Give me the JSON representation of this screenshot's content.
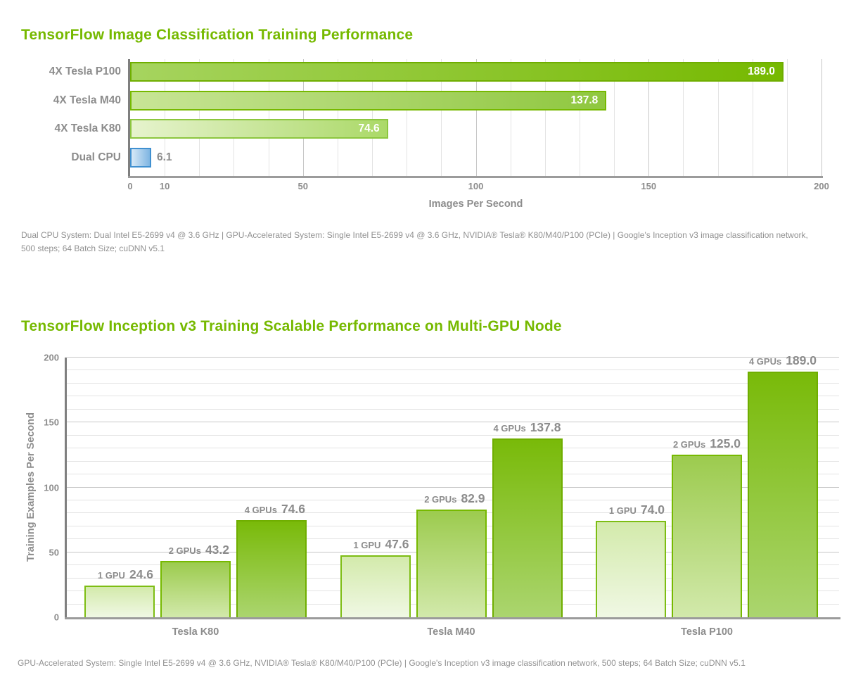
{
  "colors": {
    "brand_green": "#76b900",
    "label_gray": "#8c8c8c",
    "footnote_gray": "#919191",
    "axis_dark": "#7f7f7f",
    "axis_bottom": "#9b9b9b",
    "grid_minor": "#e3e3e3",
    "grid_major": "#c7c7c7",
    "cpu_blue": "#4090d0"
  },
  "chart_data": [
    {
      "type": "bar",
      "orientation": "horizontal",
      "title": "TensorFlow Image Classification Training Performance",
      "categories": [
        "4X Tesla P100",
        "4X Tesla M40",
        "4X Tesla K80",
        "Dual CPU"
      ],
      "values": [
        189.0,
        137.8,
        74.6,
        6.1
      ],
      "value_labels": [
        "189.0",
        "137.8",
        "74.6",
        "6.1"
      ],
      "value_inside": [
        true,
        true,
        true,
        false
      ],
      "xlabel": "Images Per Second",
      "xlim": [
        0,
        200
      ],
      "x_ticks": [
        0,
        10,
        50,
        100,
        150,
        200
      ],
      "grid": "vertical, minor every 10, major every 50",
      "legend": "none",
      "bar_styles": [
        {
          "border": "#6fae00",
          "from": "#a6d45f",
          "to": "#76b900"
        },
        {
          "border": "#76b900",
          "from": "#c8e596",
          "to": "#8fc73f"
        },
        {
          "border": "#8cc63f",
          "from": "#e6f3cd",
          "to": "#abd968"
        },
        {
          "border": "#4090d0",
          "from": "#d7e9f7",
          "to": "#7fb5e2"
        }
      ],
      "footnote": "Dual CPU System: Dual Intel E5-2699 v4 @ 3.6 GHz  |  GPU-Accelerated System: Single Intel E5-2699 v4 @ 3.6 GHz, NVIDIA® Tesla® K80/M40/P100 (PCIe)  |  Google's Inception v3 image classification network, 500 steps; 64 Batch Size; cuDNN v5.1"
    },
    {
      "type": "bar",
      "orientation": "vertical",
      "title": "TensorFlow Inception v3 Training Scalable Performance on Multi-GPU Node",
      "categories": [
        "Tesla K80",
        "Tesla M40",
        "Tesla P100"
      ],
      "series": [
        {
          "name": "1 GPU",
          "values": [
            24.6,
            47.6,
            74.0
          ],
          "style": {
            "border": "#7dbd13",
            "top": "#d3eaab",
            "bottom": "#f0f8e4"
          }
        },
        {
          "name": "2 GPUs",
          "values": [
            43.2,
            82.9,
            125.0
          ],
          "style": {
            "border": "#76b900",
            "top": "#9ccb4e",
            "bottom": "#d2e9ab"
          }
        },
        {
          "name": "4 GPUs",
          "values": [
            74.6,
            137.8,
            189.0
          ],
          "style": {
            "border": "#6fae00",
            "top": "#79ba09",
            "bottom": "#abd56f"
          }
        }
      ],
      "ylabel": "Training Examples Per Second",
      "ylim": [
        0,
        200
      ],
      "y_ticks": [
        0,
        50,
        100,
        150,
        200
      ],
      "grid": "horizontal, minor every 10, major every 50",
      "legend": "none",
      "footnote": "GPU-Accelerated System: Single Intel E5-2699 v4 @ 3.6 GHz, NVIDIA® Tesla® K80/M40/P100 (PCIe)  |  Google's Inception v3 image classification network, 500 steps; 64 Batch Size; cuDNN v5.1"
    }
  ]
}
